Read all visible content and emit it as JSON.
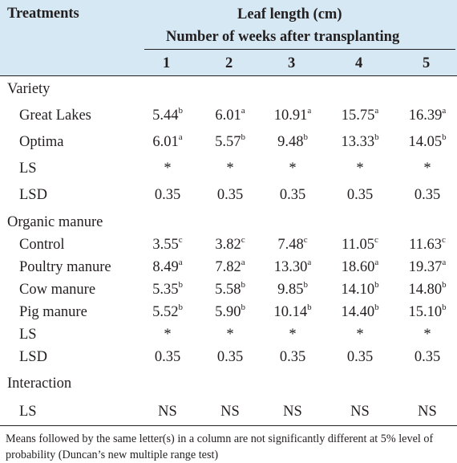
{
  "header": {
    "treatments": "Treatments",
    "leaf_length": "Leaf length (cm)",
    "weeks": "Number of weeks after transplanting",
    "cols": [
      "1",
      "2",
      "3",
      "4",
      "5"
    ]
  },
  "sections": {
    "variety": "Variety",
    "organic": "Organic manure",
    "interaction": "Interaction"
  },
  "rows": [
    {
      "label": "Great Lakes",
      "cells": [
        [
          "5.44",
          "b"
        ],
        [
          "6.01",
          "a"
        ],
        [
          "10.91",
          "a"
        ],
        [
          "15.75",
          "a"
        ],
        [
          "16.39",
          "a"
        ]
      ]
    },
    {
      "label": "Optima",
      "cells": [
        [
          "6.01",
          "a"
        ],
        [
          "5.57",
          "b"
        ],
        [
          "9.48",
          "b"
        ],
        [
          "13.33",
          "b"
        ],
        [
          "14.05",
          "b"
        ]
      ]
    },
    {
      "label": "LS",
      "cells": [
        [
          "*",
          ""
        ],
        [
          "*",
          ""
        ],
        [
          "*",
          ""
        ],
        [
          "*",
          ""
        ],
        [
          "*",
          ""
        ]
      ]
    },
    {
      "label": "LSD",
      "cells": [
        [
          "0.35",
          ""
        ],
        [
          "0.35",
          ""
        ],
        [
          "0.35",
          ""
        ],
        [
          "0.35",
          ""
        ],
        [
          "0.35",
          ""
        ]
      ]
    },
    {
      "label": "Control",
      "cells": [
        [
          "3.55",
          "c"
        ],
        [
          "3.82",
          "c"
        ],
        [
          "7.48",
          "c"
        ],
        [
          "11.05",
          "c"
        ],
        [
          "11.63",
          "c"
        ]
      ]
    },
    {
      "label": "Poultry manure",
      "cells": [
        [
          "8.49",
          "a"
        ],
        [
          "7.82",
          "a"
        ],
        [
          "13.30",
          "a"
        ],
        [
          "18.60",
          "a"
        ],
        [
          "19.37",
          "a"
        ]
      ]
    },
    {
      "label": "Cow manure",
      "cells": [
        [
          "5.35",
          "b"
        ],
        [
          "5.58",
          "b"
        ],
        [
          "9.85",
          "b"
        ],
        [
          "14.10",
          "b"
        ],
        [
          "14.80",
          "b"
        ]
      ]
    },
    {
      "label": "Pig manure",
      "cells": [
        [
          "5.52",
          "b"
        ],
        [
          "5.90",
          "b"
        ],
        [
          "10.14",
          "b"
        ],
        [
          "14.40",
          "b"
        ],
        [
          "15.10",
          "b"
        ]
      ]
    },
    {
      "label": "LS",
      "cells": [
        [
          "*",
          ""
        ],
        [
          "*",
          ""
        ],
        [
          "*",
          ""
        ],
        [
          "*",
          ""
        ],
        [
          "*",
          ""
        ]
      ]
    },
    {
      "label": "LSD",
      "cells": [
        [
          "0.35",
          ""
        ],
        [
          "0.35",
          ""
        ],
        [
          "0.35",
          ""
        ],
        [
          "0.35",
          ""
        ],
        [
          "0.35",
          ""
        ]
      ]
    },
    {
      "label": "LS",
      "cells": [
        [
          "NS",
          ""
        ],
        [
          "NS",
          ""
        ],
        [
          "NS",
          ""
        ],
        [
          "NS",
          ""
        ],
        [
          "NS",
          ""
        ]
      ]
    }
  ],
  "footnote": "Means followed by the same letter(s) in a column are not significantly different at 5% level of probability (Duncan’s new multiple range test)"
}
